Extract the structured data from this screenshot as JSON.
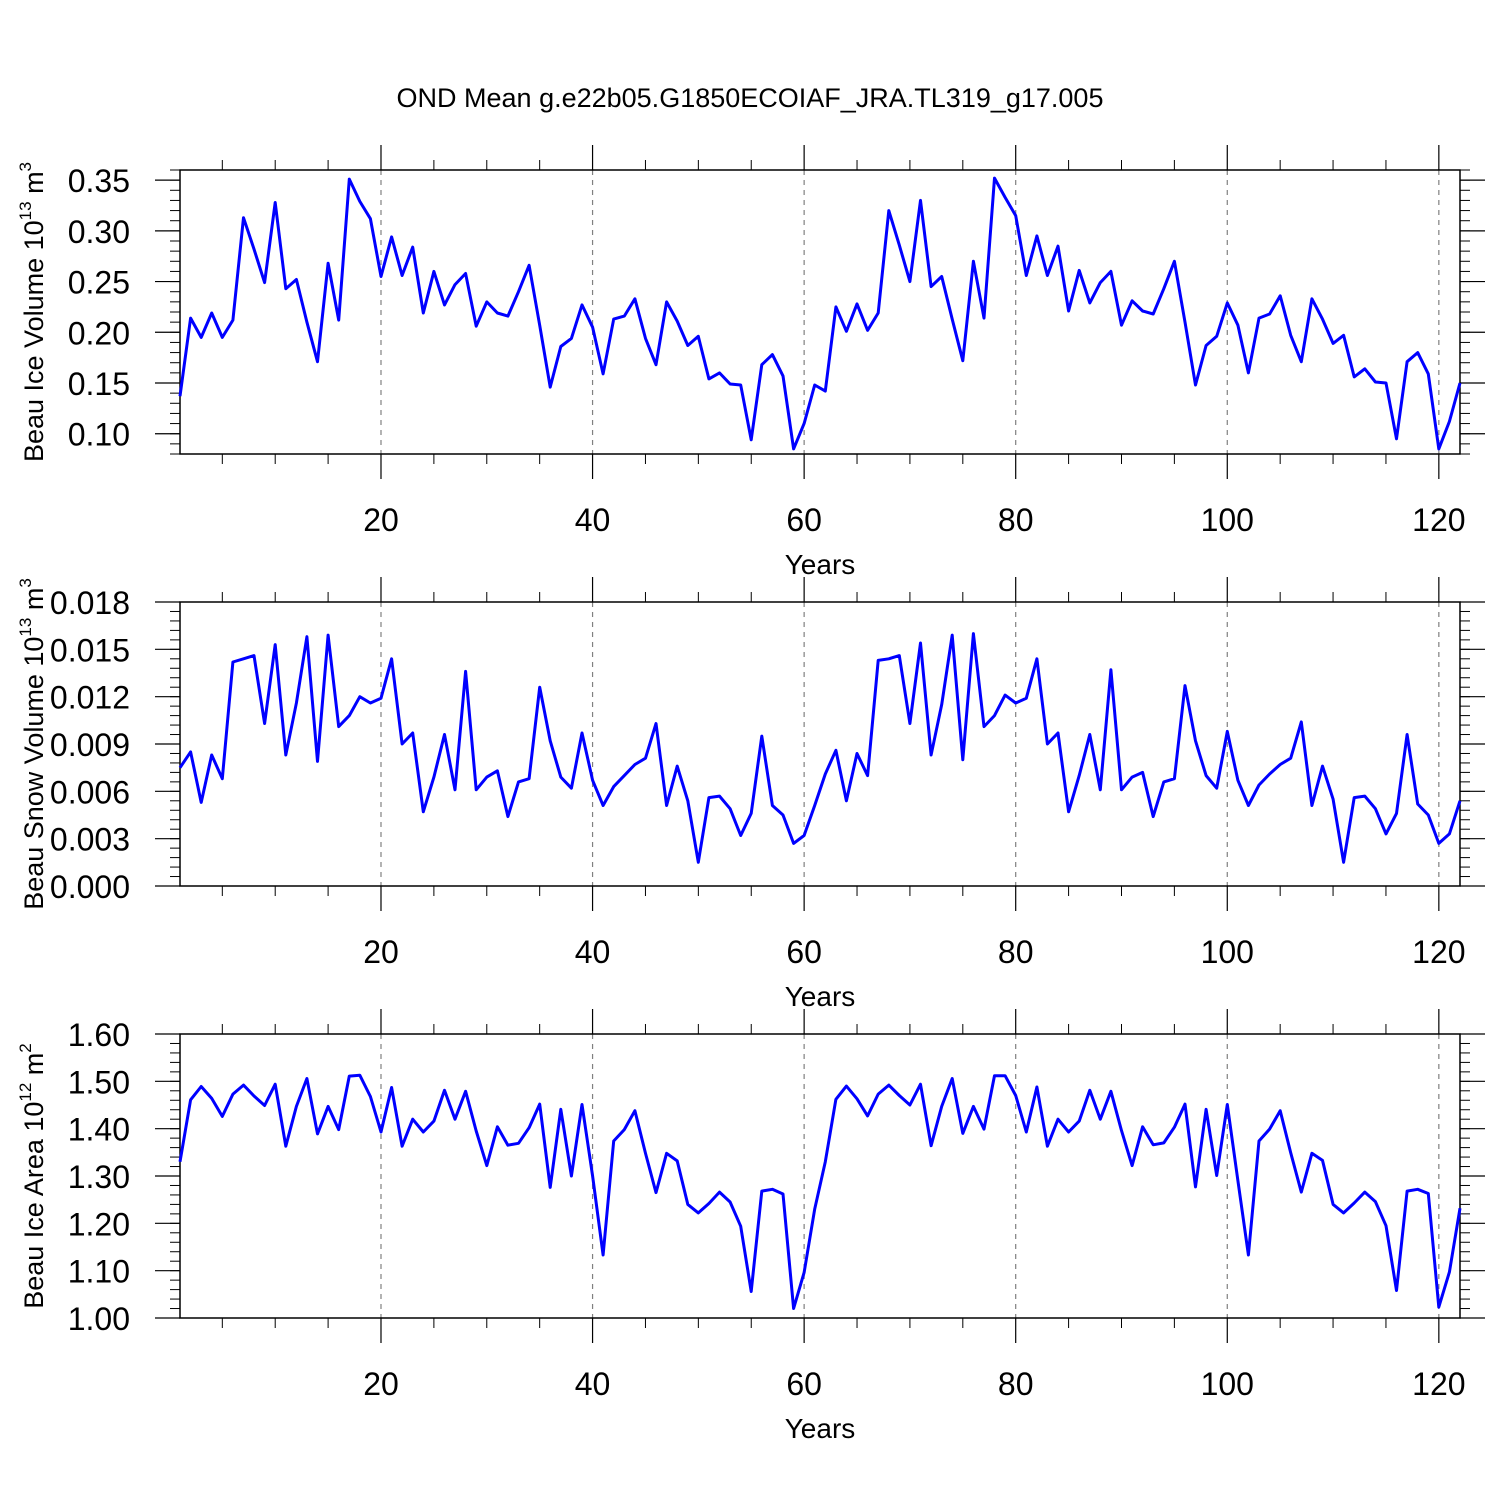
{
  "title": "OND Mean g.e22b05.G1850ECOIAF_JRA.TL319_g17.005",
  "colors": {
    "line": "#0000ff",
    "axis": "#000000",
    "grid": "#808080"
  },
  "chart_data": [
    {
      "type": "line",
      "ylabel": "Beau Ice Volume 10",
      "ylabel_exp": "13",
      "ylabel_unit": " m",
      "ylabel_unit_exp": "3",
      "xlabel": "Years",
      "xlim": [
        1,
        122
      ],
      "ylim": [
        0.08,
        0.36
      ],
      "xticks": [
        20,
        40,
        60,
        80,
        100,
        120
      ],
      "xtick_labels": [
        "20",
        "40",
        "60",
        "80",
        "100",
        "120"
      ],
      "yticks": [
        0.1,
        0.15,
        0.2,
        0.25,
        0.3,
        0.35
      ],
      "ytick_labels": [
        "0.10",
        "0.15",
        "0.20",
        "0.25",
        "0.30",
        "0.35"
      ],
      "grid": "vertical dashed at x ticks",
      "series": [
        {
          "values": [
            0.137,
            0.214,
            0.195,
            0.219,
            0.195,
            0.212,
            0.313,
            0.282,
            0.249,
            0.328,
            0.243,
            0.252,
            0.21,
            0.171,
            0.268,
            0.212,
            0.351,
            0.329,
            0.312,
            0.255,
            0.294,
            0.256,
            0.284,
            0.219,
            0.26,
            0.227,
            0.247,
            0.258,
            0.206,
            0.23,
            0.219,
            0.216,
            0.24,
            0.266,
            0.207,
            0.146,
            0.186,
            0.194,
            0.227,
            0.205,
            0.159,
            0.213,
            0.216,
            0.233,
            0.194,
            0.168,
            0.23,
            0.211,
            0.187,
            0.196,
            0.154,
            0.16,
            0.149,
            0.148,
            0.094,
            0.168,
            0.178,
            0.157,
            0.085,
            0.11,
            0.148,
            0.142,
            0.225,
            0.201,
            0.228,
            0.202,
            0.219,
            0.32,
            0.286,
            0.25,
            0.33,
            0.245,
            0.255,
            0.213,
            0.172,
            0.27,
            0.214,
            0.352,
            0.333,
            0.315,
            0.256,
            0.295,
            0.256,
            0.285,
            0.221,
            0.261,
            0.229,
            0.249,
            0.26,
            0.207,
            0.231,
            0.221,
            0.218,
            0.243,
            0.27,
            0.21,
            0.148,
            0.187,
            0.196,
            0.229,
            0.207,
            0.16,
            0.214,
            0.218,
            0.236,
            0.197,
            0.171,
            0.233,
            0.213,
            0.189,
            0.197,
            0.156,
            0.164,
            0.151,
            0.15,
            0.095,
            0.171,
            0.18,
            0.159,
            0.085,
            0.112,
            0.15
          ]
        }
      ]
    },
    {
      "type": "line",
      "ylabel": "Beau Snow Volume 10",
      "ylabel_exp": "13",
      "ylabel_unit": " m",
      "ylabel_unit_exp": "3",
      "xlabel": "Years",
      "xlim": [
        1,
        122
      ],
      "ylim": [
        0.0,
        0.018
      ],
      "xticks": [
        20,
        40,
        60,
        80,
        100,
        120
      ],
      "xtick_labels": [
        "20",
        "40",
        "60",
        "80",
        "100",
        "120"
      ],
      "yticks": [
        0.0,
        0.003,
        0.006,
        0.009,
        0.012,
        0.015,
        0.018
      ],
      "ytick_labels": [
        "0.000",
        "0.003",
        "0.006",
        "0.009",
        "0.012",
        "0.015",
        "0.018"
      ],
      "grid": "vertical dashed at x ticks",
      "series": [
        {
          "values": [
            0.0075,
            0.0085,
            0.0053,
            0.0083,
            0.0068,
            0.0142,
            0.0144,
            0.0146,
            0.0103,
            0.0153,
            0.0083,
            0.0116,
            0.0158,
            0.0079,
            0.0159,
            0.0101,
            0.0108,
            0.012,
            0.0116,
            0.0119,
            0.0144,
            0.009,
            0.0097,
            0.0047,
            0.0069,
            0.0096,
            0.0061,
            0.0136,
            0.0061,
            0.0069,
            0.0073,
            0.0044,
            0.0066,
            0.0068,
            0.0126,
            0.0092,
            0.0069,
            0.0062,
            0.0097,
            0.0067,
            0.0051,
            0.0063,
            0.007,
            0.0077,
            0.0081,
            0.0103,
            0.0051,
            0.0076,
            0.0054,
            0.0015,
            0.0056,
            0.0057,
            0.0049,
            0.0032,
            0.0046,
            0.0095,
            0.0051,
            0.0045,
            0.0027,
            0.0032,
            0.0051,
            0.0071,
            0.0086,
            0.0054,
            0.0084,
            0.007,
            0.0143,
            0.0144,
            0.0146,
            0.0103,
            0.0154,
            0.0083,
            0.0115,
            0.0159,
            0.008,
            0.016,
            0.0101,
            0.0108,
            0.0121,
            0.0116,
            0.0119,
            0.0144,
            0.009,
            0.0097,
            0.0047,
            0.007,
            0.0096,
            0.0061,
            0.0137,
            0.0061,
            0.0069,
            0.0072,
            0.0044,
            0.0066,
            0.0068,
            0.0127,
            0.0092,
            0.007,
            0.0062,
            0.0098,
            0.0067,
            0.0051,
            0.0064,
            0.0071,
            0.0077,
            0.0081,
            0.0104,
            0.0051,
            0.0076,
            0.0055,
            0.0015,
            0.0056,
            0.0057,
            0.0049,
            0.0033,
            0.0046,
            0.0096,
            0.0052,
            0.0045,
            0.0027,
            0.0033,
            0.0054
          ]
        }
      ]
    },
    {
      "type": "line",
      "ylabel": "Beau Ice Area 10",
      "ylabel_exp": "12",
      "ylabel_unit": " m",
      "ylabel_unit_exp": "2",
      "xlabel": "Years",
      "xlim": [
        1,
        122
      ],
      "ylim": [
        1.0,
        1.6
      ],
      "xticks": [
        20,
        40,
        60,
        80,
        100,
        120
      ],
      "xtick_labels": [
        "20",
        "40",
        "60",
        "80",
        "100",
        "120"
      ],
      "yticks": [
        1.0,
        1.1,
        1.2,
        1.3,
        1.4,
        1.5,
        1.6
      ],
      "ytick_labels": [
        "1.00",
        "1.10",
        "1.20",
        "1.30",
        "1.40",
        "1.50",
        "1.60"
      ],
      "grid": "vertical dashed at x ticks",
      "series": [
        {
          "values": [
            1.33,
            1.461,
            1.489,
            1.464,
            1.426,
            1.473,
            1.492,
            1.469,
            1.449,
            1.494,
            1.363,
            1.447,
            1.506,
            1.389,
            1.447,
            1.398,
            1.511,
            1.513,
            1.468,
            1.393,
            1.487,
            1.363,
            1.42,
            1.393,
            1.416,
            1.481,
            1.42,
            1.479,
            1.395,
            1.322,
            1.404,
            1.365,
            1.369,
            1.402,
            1.452,
            1.276,
            1.441,
            1.3,
            1.451,
            1.3,
            1.133,
            1.374,
            1.398,
            1.438,
            1.348,
            1.265,
            1.348,
            1.332,
            1.24,
            1.222,
            1.242,
            1.266,
            1.245,
            1.194,
            1.056,
            1.268,
            1.272,
            1.262,
            1.02,
            1.096,
            1.23,
            1.33,
            1.462,
            1.49,
            1.463,
            1.427,
            1.473,
            1.492,
            1.47,
            1.45,
            1.494,
            1.364,
            1.447,
            1.506,
            1.39,
            1.447,
            1.399,
            1.512,
            1.512,
            1.47,
            1.393,
            1.488,
            1.363,
            1.42,
            1.393,
            1.416,
            1.481,
            1.42,
            1.479,
            1.396,
            1.322,
            1.404,
            1.366,
            1.37,
            1.403,
            1.452,
            1.277,
            1.441,
            1.301,
            1.451,
            1.29,
            1.133,
            1.374,
            1.399,
            1.438,
            1.349,
            1.266,
            1.348,
            1.333,
            1.24,
            1.222,
            1.243,
            1.266,
            1.246,
            1.195,
            1.058,
            1.268,
            1.272,
            1.263,
            1.023,
            1.097,
            1.232
          ]
        }
      ]
    }
  ]
}
